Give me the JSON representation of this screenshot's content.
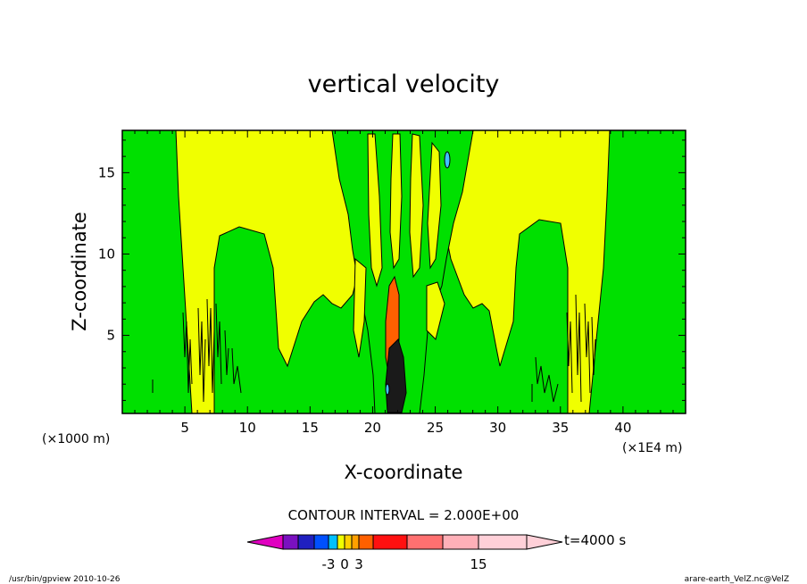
{
  "chart_data": {
    "type": "heatmap",
    "title": "vertical velocity",
    "xlabel": "X-coordinate",
    "ylabel": "Z-coordinate",
    "x_unit": "(×1E4 m)",
    "y_unit": "(×1000 m)",
    "xlim": [
      0,
      45
    ],
    "ylim": [
      0.2,
      17.6
    ],
    "x_ticks": [
      5,
      10,
      15,
      20,
      25,
      30,
      35,
      40
    ],
    "y_ticks": [
      5,
      10,
      15
    ],
    "contour_interval": "CONTOUR INTERVAL = 2.000E+00",
    "time_label": "t=4000 s",
    "colorbar": {
      "tick_labels": [
        "-3",
        "0",
        "3",
        "15"
      ],
      "colors": [
        "#e000c0",
        "#7a10c0",
        "#2020c0",
        "#0050ff",
        "#00c0ff",
        "#f0ff00",
        "#ffd000",
        "#ffa000",
        "#ff6000",
        "#ff1010",
        "#ff7070",
        "#ffb0b8",
        "#ffd0d8"
      ]
    },
    "field_colors": {
      "negative_small": "#00e000",
      "positive_small": "#f0ff00",
      "positive_mid": "#ff6000",
      "negative_mid": "#40c0ff",
      "contour": "#000000"
    }
  },
  "footer": {
    "left": "/usr/bin/gpview   2010-10-26",
    "right": "arare-earth_VelZ.nc@VelZ"
  }
}
